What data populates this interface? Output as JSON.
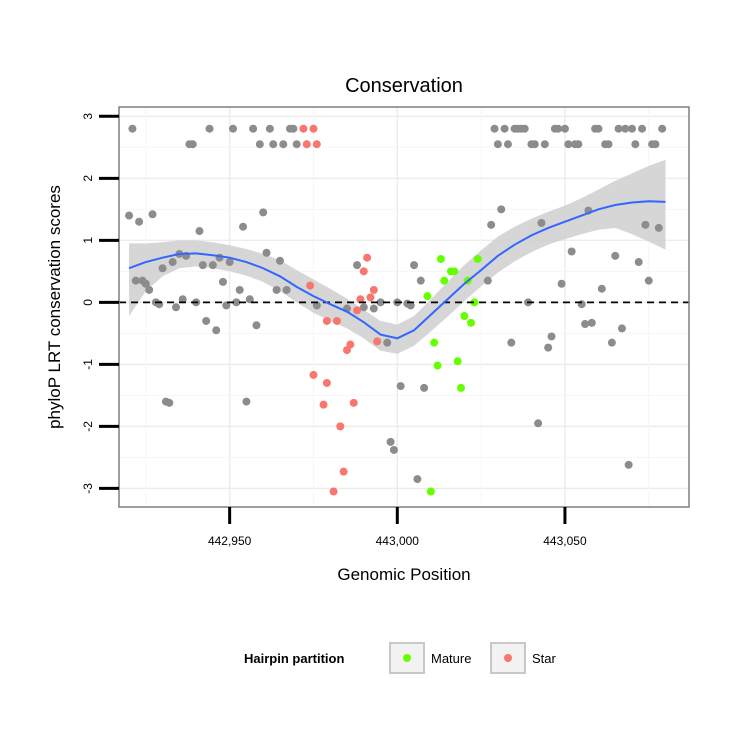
{
  "chart_data": {
    "type": "scatter",
    "title": "Conservation",
    "xlabel": "Genomic Position",
    "ylabel": "phyloP LRT conservation scores",
    "xlim": [
      442917,
      443087
    ],
    "ylim": [
      -3.3,
      3.15
    ],
    "x_ticks": [
      {
        "value": 442950,
        "label": "442,950"
      },
      {
        "value": 443000,
        "label": "443,000"
      },
      {
        "value": 443050,
        "label": "443,050"
      }
    ],
    "y_ticks": [
      {
        "value": 3,
        "label": "3"
      },
      {
        "value": 2,
        "label": "2"
      },
      {
        "value": 1,
        "label": "1"
      },
      {
        "value": 0,
        "label": "0"
      },
      {
        "value": -1,
        "label": "-1"
      },
      {
        "value": -2,
        "label": "-2"
      },
      {
        "value": -3,
        "label": "-3"
      }
    ],
    "reference_line": {
      "y": 0,
      "style": "dashed"
    },
    "legend": {
      "title": "Hairpin partition",
      "position": "bottom",
      "entries": [
        {
          "label": "Mature",
          "color": "#66ff00"
        },
        {
          "label": "Star",
          "color": "#f8766d"
        }
      ]
    },
    "other_color": "#8c8c8c",
    "smooth_color": "#3366ff",
    "band_color": "#cfcfcf",
    "series": [
      {
        "name": "Other",
        "points": [
          [
            442920,
            1.4
          ],
          [
            442921,
            2.8
          ],
          [
            442922,
            0.35
          ],
          [
            442923,
            1.3
          ],
          [
            442924,
            0.35
          ],
          [
            442925,
            0.3
          ],
          [
            442926,
            0.2
          ],
          [
            442927,
            1.42
          ],
          [
            442928,
            0.0
          ],
          [
            442929,
            -0.03
          ],
          [
            442930,
            0.55
          ],
          [
            442931,
            -1.6
          ],
          [
            442932,
            -1.62
          ],
          [
            442933,
            0.65
          ],
          [
            442934,
            -0.08
          ],
          [
            442935,
            0.78
          ],
          [
            442936,
            0.05
          ],
          [
            442937,
            0.75
          ],
          [
            442938,
            2.55
          ],
          [
            442939,
            2.55
          ],
          [
            442940,
            0.0
          ],
          [
            442941,
            1.15
          ],
          [
            442942,
            0.6
          ],
          [
            442943,
            -0.3
          ],
          [
            442944,
            2.8
          ],
          [
            442945,
            0.6
          ],
          [
            442946,
            -0.45
          ],
          [
            442947,
            0.72
          ],
          [
            442948,
            0.33
          ],
          [
            442949,
            -0.05
          ],
          [
            442950,
            0.65
          ],
          [
            442951,
            2.8
          ],
          [
            442952,
            0.0
          ],
          [
            442953,
            0.2
          ],
          [
            442954,
            1.22
          ],
          [
            442955,
            -1.6
          ],
          [
            442956,
            0.05
          ],
          [
            442957,
            2.8
          ],
          [
            442958,
            -0.37
          ],
          [
            442959,
            2.55
          ],
          [
            442960,
            1.45
          ],
          [
            442961,
            0.8
          ],
          [
            442962,
            2.8
          ],
          [
            442963,
            2.55
          ],
          [
            442964,
            0.2
          ],
          [
            442965,
            0.67
          ],
          [
            442966,
            2.55
          ],
          [
            442967,
            0.2
          ],
          [
            442968,
            2.8
          ],
          [
            442969,
            2.8
          ],
          [
            442970,
            2.55
          ],
          [
            442976,
            -0.05
          ],
          [
            442985,
            -0.1
          ],
          [
            442988,
            0.6
          ],
          [
            442990,
            -0.08
          ],
          [
            442993,
            -0.1
          ],
          [
            442995,
            0.0
          ],
          [
            442997,
            -0.65
          ],
          [
            442998,
            -2.25
          ],
          [
            442999,
            -2.38
          ],
          [
            443000,
            0.0
          ],
          [
            443001,
            -1.35
          ],
          [
            443003,
            -0.02
          ],
          [
            443004,
            -0.05
          ],
          [
            443005,
            0.6
          ],
          [
            443006,
            -2.85
          ],
          [
            443007,
            0.35
          ],
          [
            443008,
            -1.38
          ],
          [
            443027,
            0.35
          ],
          [
            443028,
            1.25
          ],
          [
            443029,
            2.8
          ],
          [
            443030,
            2.55
          ],
          [
            443031,
            1.5
          ],
          [
            443032,
            2.8
          ],
          [
            443033,
            2.55
          ],
          [
            443034,
            -0.65
          ],
          [
            443035,
            2.8
          ],
          [
            443036,
            2.8
          ],
          [
            443037,
            2.8
          ],
          [
            443038,
            2.8
          ],
          [
            443039,
            0.0
          ],
          [
            443040,
            2.55
          ],
          [
            443041,
            2.55
          ],
          [
            443042,
            -1.95
          ],
          [
            443043,
            1.28
          ],
          [
            443044,
            2.55
          ],
          [
            443045,
            -0.73
          ],
          [
            443046,
            -0.55
          ],
          [
            443047,
            2.8
          ],
          [
            443048,
            2.8
          ],
          [
            443049,
            0.3
          ],
          [
            443050,
            2.8
          ],
          [
            443051,
            2.55
          ],
          [
            443052,
            0.82
          ],
          [
            443053,
            2.55
          ],
          [
            443054,
            2.55
          ],
          [
            443055,
            -0.03
          ],
          [
            443056,
            -0.35
          ],
          [
            443057,
            1.48
          ],
          [
            443058,
            -0.33
          ],
          [
            443059,
            2.8
          ],
          [
            443060,
            2.8
          ],
          [
            443061,
            0.22
          ],
          [
            443062,
            2.55
          ],
          [
            443063,
            2.55
          ],
          [
            443064,
            -0.65
          ],
          [
            443065,
            0.75
          ],
          [
            443066,
            2.8
          ],
          [
            443067,
            -0.42
          ],
          [
            443068,
            2.8
          ],
          [
            443069,
            -2.62
          ],
          [
            443070,
            2.8
          ],
          [
            443071,
            2.55
          ],
          [
            443072,
            0.65
          ],
          [
            443073,
            2.8
          ],
          [
            443074,
            1.25
          ],
          [
            443075,
            0.35
          ],
          [
            443076,
            2.55
          ],
          [
            443077,
            2.55
          ],
          [
            443078,
            1.2
          ],
          [
            443079,
            2.8
          ]
        ]
      },
      {
        "name": "Star",
        "points": [
          [
            442972,
            2.8
          ],
          [
            442973,
            2.55
          ],
          [
            442974,
            0.27
          ],
          [
            442975,
            2.8
          ],
          [
            442976,
            2.55
          ],
          [
            442975,
            -1.17
          ],
          [
            442978,
            -1.65
          ],
          [
            442979,
            -1.3
          ],
          [
            442979,
            -0.3
          ],
          [
            442981,
            -3.05
          ],
          [
            442982,
            -0.3
          ],
          [
            442983,
            -2.0
          ],
          [
            442984,
            -2.73
          ],
          [
            442985,
            -0.77
          ],
          [
            442986,
            -0.68
          ],
          [
            442987,
            -1.62
          ],
          [
            442988,
            -0.13
          ],
          [
            442989,
            0.05
          ],
          [
            442990,
            0.5
          ],
          [
            442991,
            0.72
          ],
          [
            442992,
            0.08
          ],
          [
            442993,
            0.2
          ],
          [
            442994,
            -0.63
          ]
        ]
      },
      {
        "name": "Mature",
        "points": [
          [
            443009,
            0.1
          ],
          [
            443010,
            -3.05
          ],
          [
            443011,
            -0.65
          ],
          [
            443012,
            -1.02
          ],
          [
            443013,
            0.7
          ],
          [
            443014,
            0.35
          ],
          [
            443016,
            0.5
          ],
          [
            443017,
            0.5
          ],
          [
            443018,
            -0.95
          ],
          [
            443019,
            -1.38
          ],
          [
            443020,
            -0.22
          ],
          [
            443021,
            0.35
          ],
          [
            443022,
            -0.33
          ],
          [
            443023,
            0.0
          ],
          [
            443024,
            0.7
          ]
        ]
      }
    ],
    "smooth": [
      [
        442920,
        0.55
      ],
      [
        442925,
        0.65
      ],
      [
        442930,
        0.72
      ],
      [
        442935,
        0.78
      ],
      [
        442940,
        0.79
      ],
      [
        442945,
        0.76
      ],
      [
        442950,
        0.72
      ],
      [
        442955,
        0.65
      ],
      [
        442960,
        0.55
      ],
      [
        442965,
        0.42
      ],
      [
        442970,
        0.25
      ],
      [
        442975,
        0.1
      ],
      [
        442980,
        -0.03
      ],
      [
        442985,
        -0.15
      ],
      [
        442990,
        -0.32
      ],
      [
        442995,
        -0.52
      ],
      [
        443000,
        -0.58
      ],
      [
        443005,
        -0.45
      ],
      [
        443010,
        -0.2
      ],
      [
        443015,
        0.05
      ],
      [
        443020,
        0.3
      ],
      [
        443025,
        0.52
      ],
      [
        443030,
        0.75
      ],
      [
        443035,
        0.93
      ],
      [
        443040,
        1.08
      ],
      [
        443045,
        1.2
      ],
      [
        443050,
        1.3
      ],
      [
        443055,
        1.4
      ],
      [
        443060,
        1.5
      ],
      [
        443065,
        1.57
      ],
      [
        443070,
        1.61
      ],
      [
        443075,
        1.63
      ],
      [
        443080,
        1.62
      ]
    ],
    "smooth_upper": [
      [
        442920,
        0.95
      ],
      [
        442925,
        0.95
      ],
      [
        442930,
        0.97
      ],
      [
        442935,
        1.0
      ],
      [
        442940,
        1.0
      ],
      [
        442945,
        0.97
      ],
      [
        442950,
        0.92
      ],
      [
        442955,
        0.86
      ],
      [
        442960,
        0.78
      ],
      [
        442965,
        0.68
      ],
      [
        442970,
        0.52
      ],
      [
        442975,
        0.37
      ],
      [
        442980,
        0.22
      ],
      [
        442985,
        0.06
      ],
      [
        442990,
        -0.12
      ],
      [
        442995,
        -0.3
      ],
      [
        443000,
        -0.36
      ],
      [
        443005,
        -0.22
      ],
      [
        443010,
        0.05
      ],
      [
        443015,
        0.33
      ],
      [
        443020,
        0.6
      ],
      [
        443025,
        0.84
      ],
      [
        443030,
        1.06
      ],
      [
        443035,
        1.22
      ],
      [
        443040,
        1.35
      ],
      [
        443045,
        1.46
      ],
      [
        443050,
        1.56
      ],
      [
        443055,
        1.68
      ],
      [
        443060,
        1.82
      ],
      [
        443065,
        1.96
      ],
      [
        443070,
        2.08
      ],
      [
        443075,
        2.2
      ],
      [
        443080,
        2.3
      ]
    ],
    "smooth_lower": [
      [
        442920,
        -0.22
      ],
      [
        442925,
        0.18
      ],
      [
        442930,
        0.42
      ],
      [
        442935,
        0.55
      ],
      [
        442940,
        0.58
      ],
      [
        442945,
        0.55
      ],
      [
        442950,
        0.5
      ],
      [
        442955,
        0.43
      ],
      [
        442960,
        0.33
      ],
      [
        442965,
        0.18
      ],
      [
        442970,
        0.0
      ],
      [
        442975,
        -0.17
      ],
      [
        442980,
        -0.3
      ],
      [
        442985,
        -0.42
      ],
      [
        442990,
        -0.58
      ],
      [
        442995,
        -0.78
      ],
      [
        443000,
        -0.83
      ],
      [
        443005,
        -0.7
      ],
      [
        443010,
        -0.47
      ],
      [
        443015,
        -0.23
      ],
      [
        443020,
        0.02
      ],
      [
        443025,
        0.26
      ],
      [
        443030,
        0.48
      ],
      [
        443035,
        0.66
      ],
      [
        443040,
        0.81
      ],
      [
        443045,
        0.93
      ],
      [
        443050,
        1.02
      ],
      [
        443055,
        1.1
      ],
      [
        443060,
        1.17
      ],
      [
        443065,
        1.2
      ],
      [
        443070,
        1.1
      ],
      [
        443075,
        0.98
      ],
      [
        443080,
        0.85
      ]
    ]
  }
}
